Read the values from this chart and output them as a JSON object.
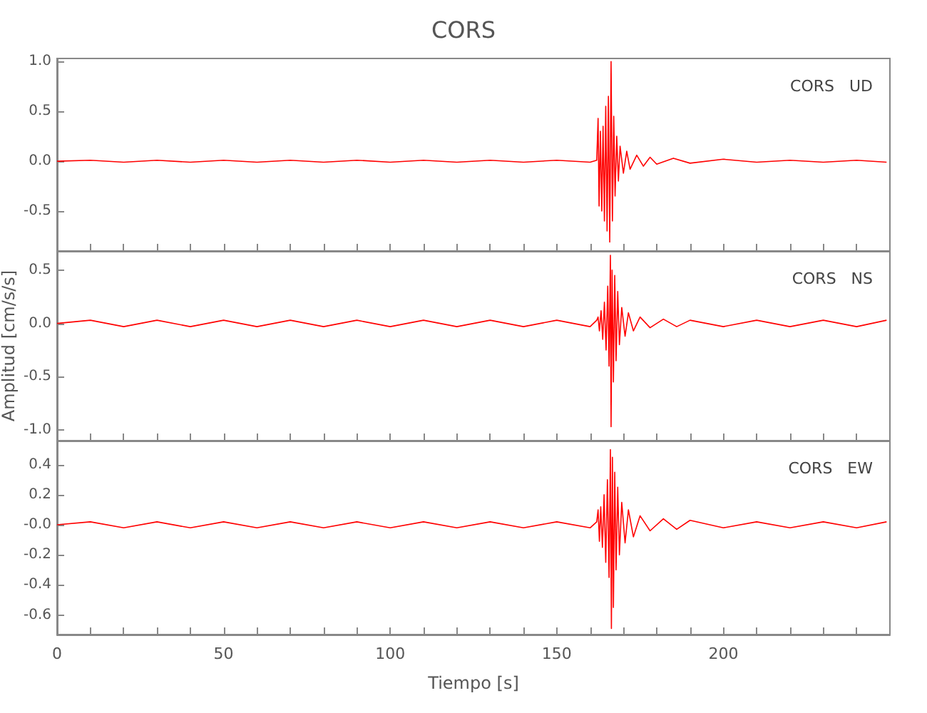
{
  "chart_data": [
    {
      "type": "line",
      "title": "CORS",
      "annotations": [
        "CORS   UD"
      ],
      "tick_labels": "y",
      "color": "#ff0000",
      "grid": false,
      "xlim": [
        0,
        250
      ],
      "xticks": [
        0,
        {
          "value": 10,
          "label": null
        },
        {
          "value": 20,
          "label": null
        },
        {
          "value": 30,
          "label": null
        },
        {
          "value": 40,
          "label": null
        },
        50,
        {
          "value": 60,
          "label": null
        },
        {
          "value": 70,
          "label": null
        },
        {
          "value": 80,
          "label": null
        },
        {
          "value": 90,
          "label": null
        },
        100,
        {
          "value": 110,
          "label": null
        },
        {
          "value": 120,
          "label": null
        },
        {
          "value": 130,
          "label": null
        },
        {
          "value": 140,
          "label": null
        },
        150,
        {
          "value": 160,
          "label": null
        },
        {
          "value": 170,
          "label": null
        },
        {
          "value": 180,
          "label": null
        },
        {
          "value": 190,
          "label": null
        },
        200,
        {
          "value": 210,
          "label": null
        },
        {
          "value": 220,
          "label": null
        },
        {
          "value": 230,
          "label": null
        },
        {
          "value": 240,
          "label": null
        }
      ],
      "ylim": [
        -0.9,
        1.03
      ],
      "yticks": [
        {
          "value": -0.5,
          "label": "-0.5"
        },
        {
          "value": 0,
          "label": "0.0"
        },
        {
          "value": 0.5,
          "label": "0.5"
        },
        {
          "value": 1,
          "label": "1.0"
        }
      ],
      "x": [
        0,
        10,
        20,
        30,
        40,
        50,
        60,
        70,
        80,
        90,
        100,
        110,
        120,
        130,
        140,
        150,
        160,
        162,
        162.4,
        162.7,
        163.1,
        163.5,
        163.9,
        164.3,
        164.7,
        165.1,
        165.5,
        165.9,
        166.3,
        166.7,
        167.1,
        167.5,
        168,
        168.5,
        169,
        170,
        171,
        172,
        174,
        176,
        178,
        180,
        185,
        190,
        200,
        210,
        220,
        230,
        240,
        249
      ],
      "values": [
        0,
        0.01,
        -0.01,
        0.01,
        -0.01,
        0.01,
        -0.01,
        0.01,
        -0.01,
        0.01,
        -0.01,
        0.01,
        -0.01,
        0.01,
        -0.01,
        0.01,
        -0.01,
        0.01,
        0.43,
        -0.45,
        0.3,
        -0.5,
        0.35,
        -0.6,
        0.55,
        -0.7,
        0.65,
        -0.81,
        1.0,
        -0.6,
        0.45,
        -0.35,
        0.25,
        -0.2,
        0.15,
        -0.12,
        0.1,
        -0.08,
        0.06,
        -0.05,
        0.04,
        -0.03,
        0.03,
        -0.02,
        0.02,
        -0.01,
        0.01,
        -0.01,
        0.01,
        -0.01
      ]
    },
    {
      "type": "line",
      "ylabel": "Amplitud [cm/s/s]",
      "annotations": [
        "CORS   NS"
      ],
      "tick_labels": "y",
      "color": "#ff0000",
      "grid": false,
      "xlim": [
        0,
        250
      ],
      "xticks": [
        0,
        {
          "value": 10,
          "label": null
        },
        {
          "value": 20,
          "label": null
        },
        {
          "value": 30,
          "label": null
        },
        {
          "value": 40,
          "label": null
        },
        50,
        {
          "value": 60,
          "label": null
        },
        {
          "value": 70,
          "label": null
        },
        {
          "value": 80,
          "label": null
        },
        {
          "value": 90,
          "label": null
        },
        100,
        {
          "value": 110,
          "label": null
        },
        {
          "value": 120,
          "label": null
        },
        {
          "value": 130,
          "label": null
        },
        {
          "value": 140,
          "label": null
        },
        150,
        {
          "value": 160,
          "label": null
        },
        {
          "value": 170,
          "label": null
        },
        {
          "value": 180,
          "label": null
        },
        {
          "value": 190,
          "label": null
        },
        200,
        {
          "value": 210,
          "label": null
        },
        {
          "value": 220,
          "label": null
        },
        {
          "value": 230,
          "label": null
        },
        {
          "value": 240,
          "label": null
        }
      ],
      "ylim": [
        -1.1,
        0.68
      ],
      "yticks": [
        {
          "value": -1,
          "label": "-1.0"
        },
        {
          "value": -0.5,
          "label": "-0.5"
        },
        {
          "value": 0,
          "label": "0.0"
        },
        {
          "value": 0.5,
          "label": "0.5"
        }
      ],
      "x": [
        0,
        10,
        20,
        30,
        40,
        50,
        60,
        70,
        80,
        90,
        100,
        110,
        120,
        130,
        140,
        150,
        160,
        162,
        162.4,
        162.8,
        163.3,
        163.8,
        164.3,
        164.8,
        165.3,
        165.7,
        166.1,
        166.3,
        166.6,
        167,
        167.4,
        167.8,
        168.3,
        168.8,
        169.5,
        170.5,
        171.5,
        173,
        175,
        178,
        182,
        186,
        190,
        200,
        210,
        220,
        230,
        240,
        249
      ],
      "values": [
        0,
        0.03,
        -0.03,
        0.03,
        -0.03,
        0.03,
        -0.03,
        0.03,
        -0.03,
        0.03,
        -0.03,
        0.03,
        -0.03,
        0.03,
        -0.03,
        0.03,
        -0.03,
        0.03,
        0.06,
        -0.07,
        0.12,
        -0.15,
        0.2,
        -0.25,
        0.35,
        -0.4,
        0.64,
        -0.97,
        0.5,
        -0.55,
        0.45,
        -0.35,
        0.3,
        -0.2,
        0.15,
        -0.12,
        0.1,
        -0.07,
        0.06,
        -0.04,
        0.04,
        -0.03,
        0.03,
        -0.03,
        0.03,
        -0.03,
        0.03,
        -0.03,
        0.03
      ]
    },
    {
      "type": "line",
      "xlabel": "Tiempo [s]",
      "annotations": [
        "CORS   EW"
      ],
      "color": "#ff0000",
      "grid": false,
      "xlim": [
        0,
        250
      ],
      "xticks": [
        0,
        {
          "value": 10,
          "label": null
        },
        {
          "value": 20,
          "label": null
        },
        {
          "value": 30,
          "label": null
        },
        {
          "value": 40,
          "label": null
        },
        50,
        {
          "value": 60,
          "label": null
        },
        {
          "value": 70,
          "label": null
        },
        {
          "value": 80,
          "label": null
        },
        {
          "value": 90,
          "label": null
        },
        100,
        {
          "value": 110,
          "label": null
        },
        {
          "value": 120,
          "label": null
        },
        {
          "value": 130,
          "label": null
        },
        {
          "value": 140,
          "label": null
        },
        150,
        {
          "value": 160,
          "label": null
        },
        {
          "value": 170,
          "label": null
        },
        {
          "value": 180,
          "label": null
        },
        {
          "value": 190,
          "label": null
        },
        200,
        {
          "value": 210,
          "label": null
        },
        {
          "value": 220,
          "label": null
        },
        {
          "value": 230,
          "label": null
        },
        {
          "value": 240,
          "label": null
        }
      ],
      "ylim": [
        -0.73,
        0.56
      ],
      "yticks": [
        {
          "value": -0.6,
          "label": "-0.6"
        },
        {
          "value": -0.4,
          "label": "-0.4"
        },
        {
          "value": -0.2,
          "label": "-0.2"
        },
        {
          "value": 0,
          "label": "-0.0"
        },
        {
          "value": 0.2,
          "label": "0.2"
        },
        {
          "value": 0.4,
          "label": "0.4"
        }
      ],
      "x": [
        0,
        10,
        20,
        30,
        40,
        50,
        60,
        70,
        80,
        90,
        100,
        110,
        120,
        130,
        140,
        150,
        160,
        162,
        162.4,
        162.8,
        163.2,
        163.7,
        164.2,
        164.7,
        165.2,
        165.7,
        166.1,
        166.4,
        166.7,
        167,
        167.4,
        167.8,
        168.3,
        168.8,
        169.5,
        170.5,
        171.5,
        173,
        175,
        178,
        182,
        186,
        190,
        200,
        210,
        220,
        230,
        240,
        249
      ],
      "values": [
        0,
        0.02,
        -0.02,
        0.02,
        -0.02,
        0.02,
        -0.02,
        0.02,
        -0.02,
        0.02,
        -0.02,
        0.02,
        -0.02,
        0.02,
        -0.02,
        0.02,
        -0.02,
        0.02,
        0.1,
        -0.11,
        0.12,
        -0.15,
        0.2,
        -0.25,
        0.3,
        -0.35,
        0.5,
        -0.69,
        0.45,
        -0.55,
        0.35,
        -0.3,
        0.25,
        -0.2,
        0.15,
        -0.12,
        0.1,
        -0.08,
        0.06,
        -0.04,
        0.04,
        -0.03,
        0.03,
        -0.02,
        0.02,
        -0.02,
        0.02,
        -0.02,
        0.02
      ]
    }
  ]
}
